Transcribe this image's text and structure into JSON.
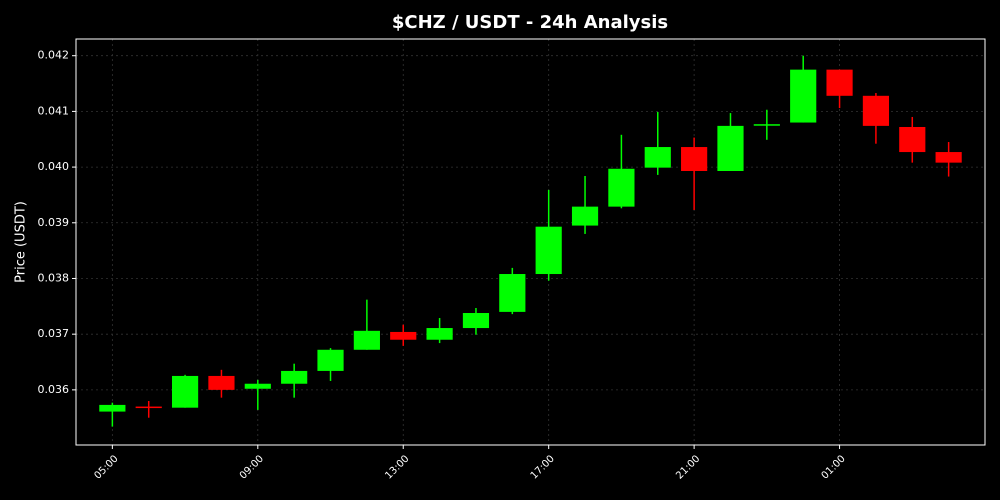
{
  "chart_data": {
    "type": "candlestick",
    "title": "$CHZ / USDT - 24h Analysis",
    "y_label": "Price (USDT)",
    "categories": [
      "05:00",
      null,
      null,
      null,
      "09:00",
      null,
      null,
      null,
      "13:00",
      null,
      null,
      null,
      "17:00",
      null,
      null,
      null,
      "21:00",
      null,
      null,
      null,
      "01:00",
      null,
      null,
      null
    ],
    "open": [
      0.03561,
      0.0357,
      0.03568,
      0.03625,
      0.03602,
      0.03611,
      0.03634,
      0.03672,
      0.03704,
      0.0369,
      0.03711,
      0.0374,
      0.03808,
      0.03895,
      0.03929,
      0.03999,
      0.04036,
      0.03993,
      0.04075,
      0.0408,
      0.04175,
      0.04128,
      0.04072,
      0.04027
    ],
    "high": [
      0.03577,
      0.0358,
      0.03627,
      0.03636,
      0.03618,
      0.03647,
      0.03675,
      0.03762,
      0.03717,
      0.03729,
      0.03747,
      0.03819,
      0.03959,
      0.03984,
      0.04058,
      0.04099,
      0.04053,
      0.04097,
      0.04103,
      0.042,
      0.04175,
      0.04133,
      0.0409,
      0.04045
    ],
    "low": [
      0.03534,
      0.0355,
      0.03568,
      0.03586,
      0.03564,
      0.03586,
      0.03616,
      0.03672,
      0.03679,
      0.03684,
      0.03699,
      0.03736,
      0.03796,
      0.0388,
      0.03926,
      0.03986,
      0.03923,
      0.03993,
      0.04049,
      0.0408,
      0.04106,
      0.04042,
      0.04008,
      0.03983
    ],
    "close": [
      0.03573,
      0.03569,
      0.03625,
      0.036,
      0.03611,
      0.03634,
      0.03672,
      0.03706,
      0.0369,
      0.03711,
      0.03738,
      0.03808,
      0.03893,
      0.03929,
      0.03997,
      0.04036,
      0.03993,
      0.04074,
      0.04077,
      0.04175,
      0.04128,
      0.04074,
      0.04027,
      0.04008
    ],
    "up_color": "#00ff00",
    "down_color": "#ff0000",
    "ylim": [
      0.03501,
      0.0423
    ],
    "yticks": [
      0.036,
      0.037,
      0.038,
      0.039,
      {
        "value": 0.04,
        "label": "0.040"
      },
      0.041,
      0.042
    ],
    "grid": true
  }
}
